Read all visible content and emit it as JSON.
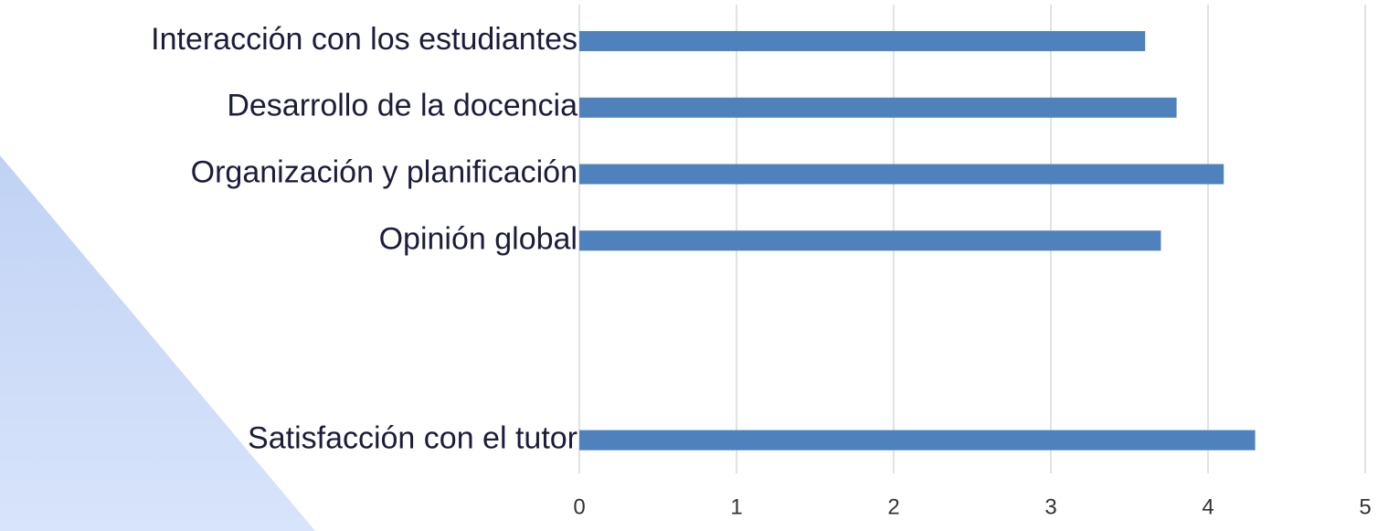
{
  "chart_data": {
    "type": "barh",
    "categories": [
      "Interacción con los estudiantes",
      "Desarrollo de la docencia",
      "Organización y planificación",
      "Opinión global",
      null,
      null,
      "Satisfacción con el tutor"
    ],
    "values": [
      3.6,
      3.8,
      4.1,
      3.7,
      null,
      null,
      4.3
    ],
    "color": "#4f81bd",
    "xlim": [
      0,
      5
    ],
    "xticks": [
      0,
      1,
      2,
      3,
      4,
      5
    ],
    "grid": true
  }
}
